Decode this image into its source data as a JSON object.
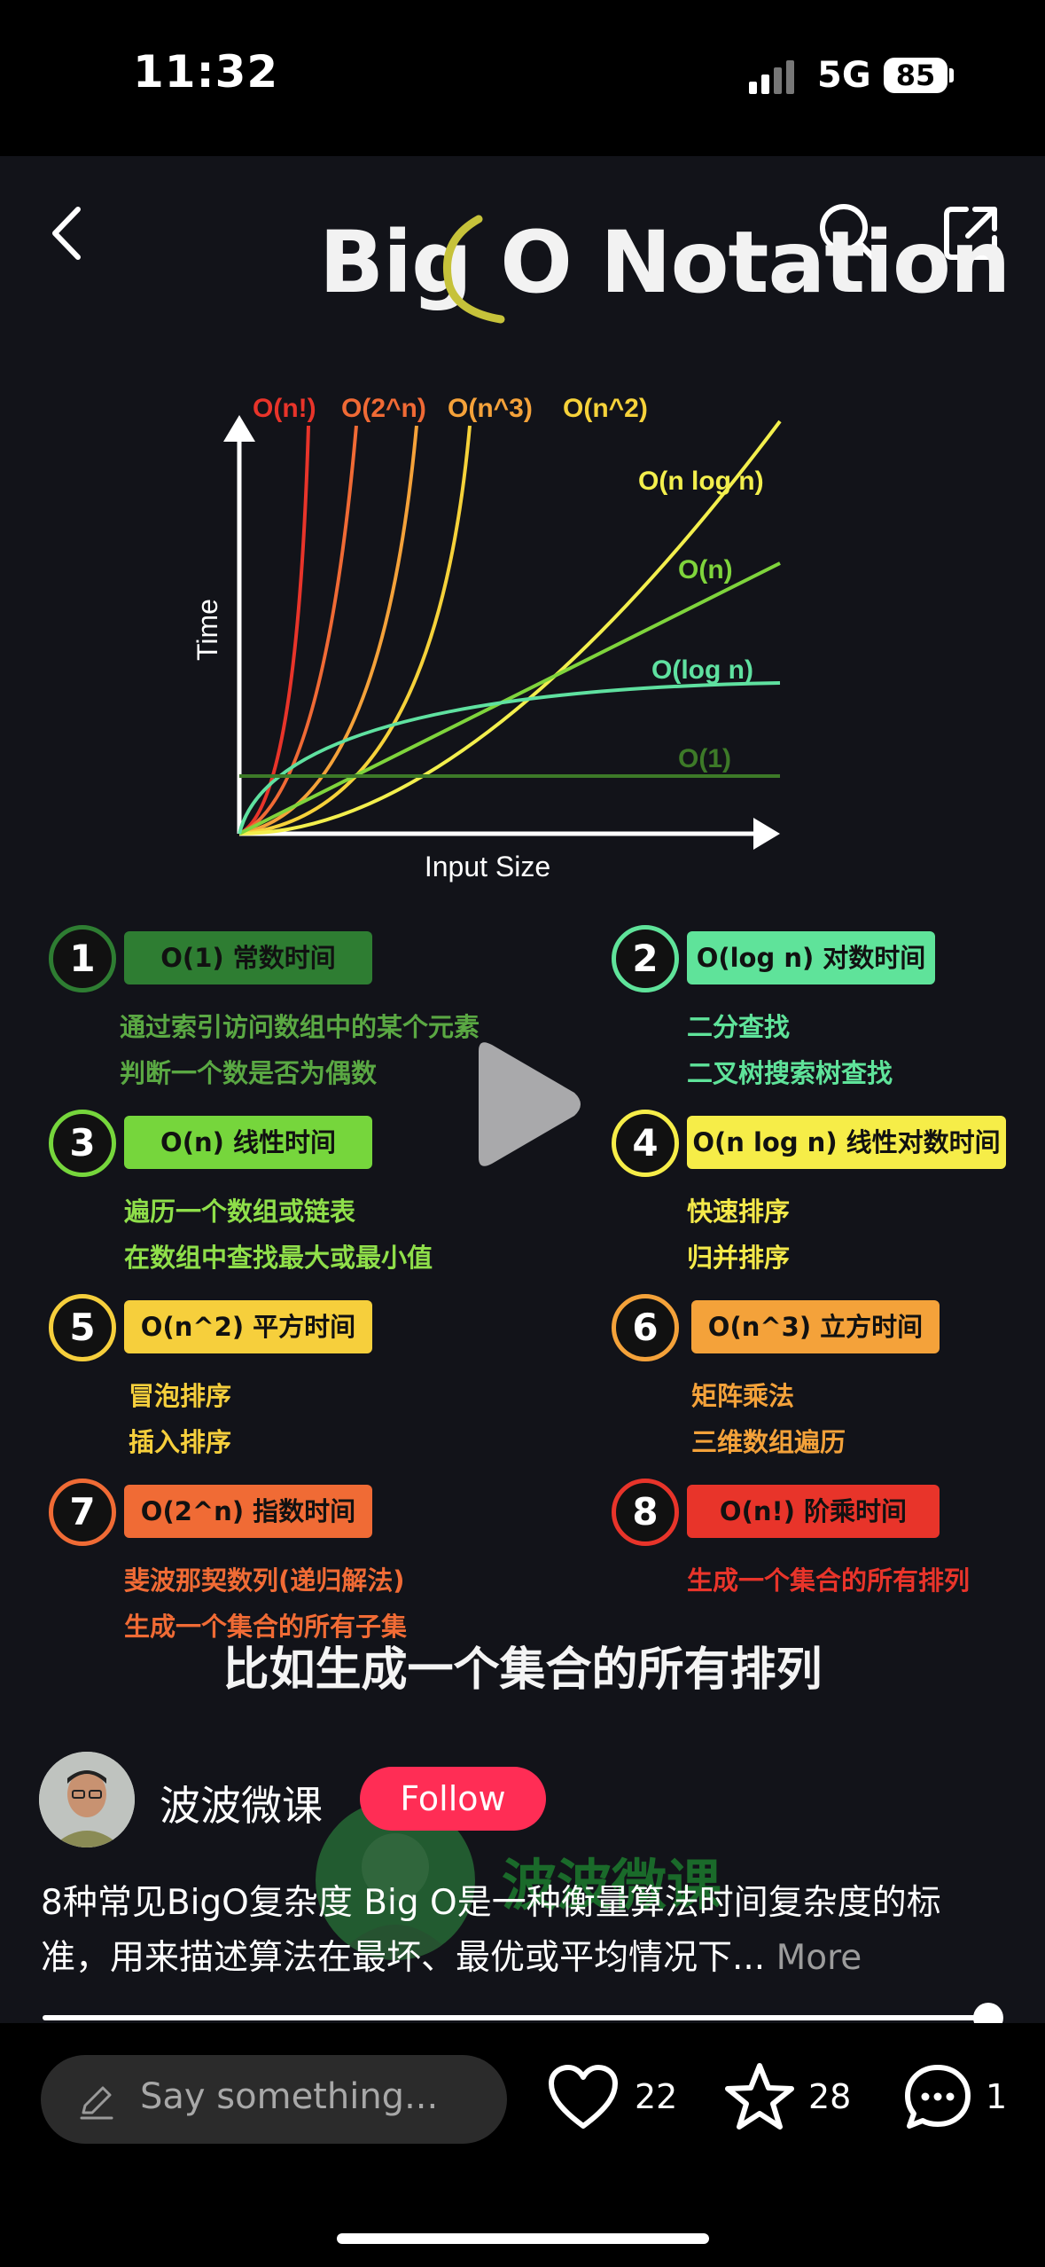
{
  "status_bar": {
    "time": "11:32",
    "network": "5G",
    "battery": "85"
  },
  "nav": {
    "back_icon": "chevron-left-icon",
    "search_icon": "search-icon",
    "share_icon": "share-icon"
  },
  "video": {
    "title": "Big O Notation",
    "chart": {
      "y_label": "Time",
      "x_label": "Input Size",
      "curves": [
        {
          "label": "O(n!)",
          "color": "#e8342a"
        },
        {
          "label": "O(2^n)",
          "color": "#f06a35"
        },
        {
          "label": "O(n^3)",
          "color": "#f5a23a"
        },
        {
          "label": "O(n^2)",
          "color": "#f6d23a"
        },
        {
          "label": "O(n log n)",
          "color": "#f3ef4d"
        },
        {
          "label": "O(n)",
          "color": "#7fd43c"
        },
        {
          "label": "O(log n)",
          "color": "#5fe1a0"
        },
        {
          "label": "O(1)",
          "color": "#3d7a28"
        }
      ]
    },
    "items": [
      {
        "num": "1",
        "pill": "O(1) 常数时间",
        "lines": [
          "通过索引访问数组中的某个元素",
          "判断一个数是否为偶数"
        ],
        "color": "#2e7d32",
        "text_color": "#5aa843"
      },
      {
        "num": "2",
        "pill": "O(log n) 对数时间",
        "lines": [
          "二分查找",
          "二叉树搜索树查找"
        ],
        "color": "#5fe39a",
        "text_color": "#5fe39a"
      },
      {
        "num": "3",
        "pill": "O(n) 线性时间",
        "lines": [
          "遍历一个数组或链表",
          "在数组中查找最大或最小值"
        ],
        "color": "#76d63c",
        "text_color": "#8fdf4a"
      },
      {
        "num": "4",
        "pill": "O(n log n) 线性对数时间",
        "lines": [
          "快速排序",
          "归并排序"
        ],
        "color": "#f6ed48",
        "text_color": "#f4e94a"
      },
      {
        "num": "5",
        "pill": "O(n^2) 平方时间",
        "lines": [
          "冒泡排序",
          "插入排序"
        ],
        "color": "#f6cf3c",
        "text_color": "#f6cf3c"
      },
      {
        "num": "6",
        "pill": "O(n^3) 立方时间",
        "lines": [
          "矩阵乘法",
          "三维数组遍历"
        ],
        "color": "#f4a23a",
        "text_color": "#f4a23a"
      },
      {
        "num": "7",
        "pill": "O(2^n) 指数时间",
        "lines": [
          "斐波那契数列(递归解法)",
          "生成一个集合的所有子集"
        ],
        "color": "#f06b35",
        "text_color": "#f06b35"
      },
      {
        "num": "8",
        "pill": "O(n!) 阶乘时间",
        "lines": [
          "生成一个集合的所有排列"
        ],
        "color": "#e8342a",
        "text_color": "#e8342a"
      }
    ],
    "subtitle": "比如生成一个集合的所有排列",
    "watermark": "波波微课"
  },
  "author": {
    "name": "波波微课",
    "follow_label": "Follow"
  },
  "caption": {
    "text": "8种常见BigO复杂度 Big O是一种衡量算法时间复杂度的标准，用来描述算法在最坏、最优或平均情况下...",
    "more_label": "More"
  },
  "progress": 0.98,
  "bottom": {
    "comment_placeholder": "Say something...",
    "likes": "22",
    "favorites": "28",
    "comments": "1"
  }
}
